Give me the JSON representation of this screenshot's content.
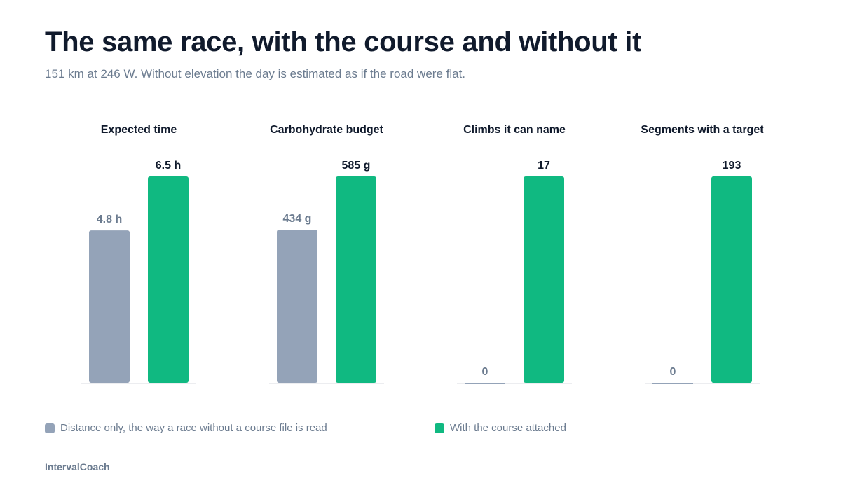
{
  "header": {
    "title": "The same race, with the course and without it",
    "subtitle": "151 km at 246 W. Without elevation the day is estimated as if the road were flat."
  },
  "colors": {
    "base": "#94a3b8",
    "course": "#10b981",
    "baseline": "#e5e7eb"
  },
  "legend": {
    "base_label": "Distance only, the way a race without a course file is read",
    "course_label": "With the course attached"
  },
  "footer": {
    "brand": "IntervalCoach"
  },
  "chart_data": [
    {
      "type": "bar",
      "title": "Expected time",
      "categories": [
        "Distance only",
        "With the course"
      ],
      "values": [
        4.8,
        6.5
      ],
      "labels": [
        "4.8 h",
        "6.5 h"
      ]
    },
    {
      "type": "bar",
      "title": "Carbohydrate budget",
      "categories": [
        "Distance only",
        "With the course"
      ],
      "values": [
        434,
        585
      ],
      "labels": [
        "434 g",
        "585 g"
      ]
    },
    {
      "type": "bar",
      "title": "Climbs it can name",
      "categories": [
        "Distance only",
        "With the course"
      ],
      "values": [
        0,
        17
      ],
      "labels": [
        "0",
        "17"
      ]
    },
    {
      "type": "bar",
      "title": "Segments with a target",
      "categories": [
        "Distance only",
        "With the course"
      ],
      "values": [
        0,
        193
      ],
      "labels": [
        "0",
        "193"
      ]
    }
  ]
}
